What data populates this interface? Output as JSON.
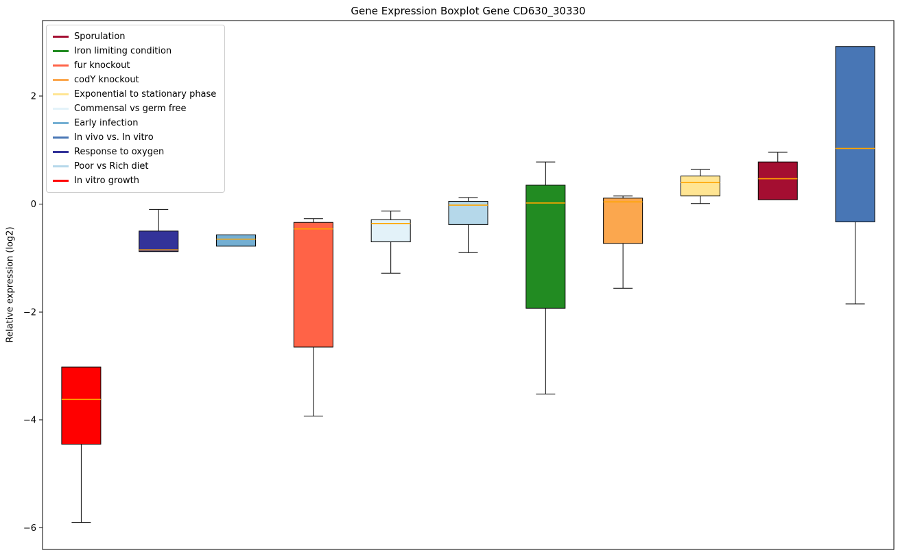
{
  "chart_data": {
    "type": "boxplot",
    "title": "Gene Expression Boxplot Gene CD630_30330",
    "ylabel": "Relative expression (log2)",
    "xlabel": "",
    "ylim": [
      -6.4,
      3.4
    ],
    "yticks": [
      -6,
      -4,
      -2,
      0,
      2
    ],
    "grid": false,
    "legend_position": "upper-left",
    "median_color": "#FFA500",
    "whisker_color": "#000000",
    "box_edge_color": "#000000",
    "legend": [
      "Sporulation",
      "Iron limiting condition",
      "fur knockout",
      "codY knockout",
      "Exponential to stationary phase",
      "Commensal vs germ free",
      "Early infection",
      "In vivo vs. In vitro",
      "Response to oxygen",
      "Poor vs Rich diet",
      "In vitro growth"
    ],
    "series": [
      {
        "name": "In vitro growth",
        "color": "#FF0000",
        "whislo": -5.9,
        "q1": -4.45,
        "med": -3.62,
        "q3": -3.02,
        "whishi": -3.02
      },
      {
        "name": "Response to oxygen",
        "color": "#333399",
        "whislo": -0.88,
        "q1": -0.88,
        "med": -0.85,
        "q3": -0.5,
        "whishi": -0.1
      },
      {
        "name": "Early infection",
        "color": "#74AFD3",
        "whislo": -0.78,
        "q1": -0.78,
        "med": -0.65,
        "q3": -0.57,
        "whishi": -0.57
      },
      {
        "name": "fur knockout",
        "color": "#FF6347",
        "whislo": -3.93,
        "q1": -2.65,
        "med": -0.46,
        "q3": -0.34,
        "whishi": -0.27
      },
      {
        "name": "Commensal vs germ free",
        "color": "#E3F2F9",
        "whislo": -1.28,
        "q1": -0.7,
        "med": -0.36,
        "q3": -0.29,
        "whishi": -0.13
      },
      {
        "name": "Poor vs Rich diet",
        "color": "#B5D8EA",
        "whislo": -0.9,
        "q1": -0.38,
        "med": -0.02,
        "q3": 0.05,
        "whishi": 0.12
      },
      {
        "name": "Iron limiting condition",
        "color": "#228B22",
        "whislo": -3.52,
        "q1": -1.93,
        "med": 0.02,
        "q3": 0.35,
        "whishi": 0.78
      },
      {
        "name": "codY knockout",
        "color": "#FBA74E",
        "whislo": -1.56,
        "q1": -0.73,
        "med": 0.04,
        "q3": 0.11,
        "whishi": 0.15
      },
      {
        "name": "Exponential to stationary phase",
        "color": "#FFE593",
        "whislo": 0.01,
        "q1": 0.15,
        "med": 0.4,
        "q3": 0.52,
        "whishi": 0.64
      },
      {
        "name": "Sporulation",
        "color": "#A40E31",
        "whislo": 0.08,
        "q1": 0.08,
        "med": 0.47,
        "q3": 0.78,
        "whishi": 0.96
      },
      {
        "name": "In vivo vs. In vitro",
        "color": "#4876B5",
        "whislo": -1.85,
        "q1": -0.33,
        "med": 1.03,
        "q3": 2.92,
        "whishi": 2.92
      }
    ]
  }
}
